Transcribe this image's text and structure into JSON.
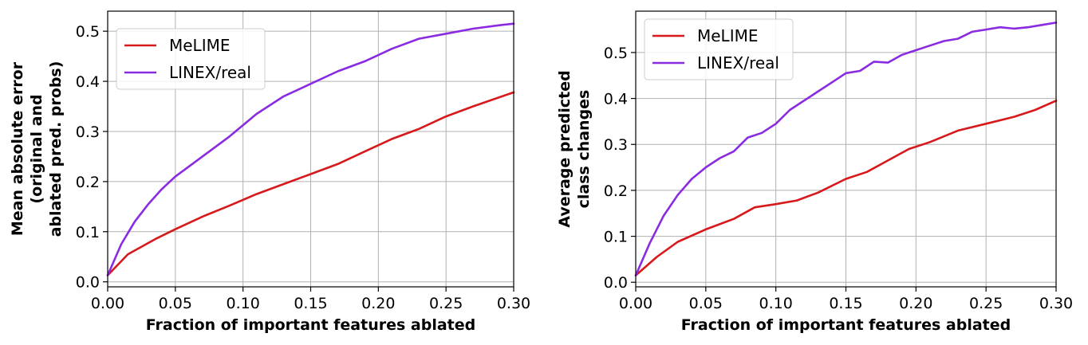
{
  "colors": {
    "melime": "#d7191c",
    "linex": "#8a2be2"
  },
  "chart_data": [
    {
      "type": "line",
      "xlabel": "Fraction of important features ablated",
      "ylabel": [
        "Mean absolute error",
        "(original and",
        "ablated pred. probs)"
      ],
      "xlim": [
        0,
        0.3
      ],
      "ylim": [
        -0.01,
        0.54
      ],
      "xticks": [
        0,
        0.05,
        0.1,
        0.15,
        0.2,
        0.25,
        0.3
      ],
      "xtick_labels": [
        "0.00",
        "0.05",
        "0.10",
        "0.15",
        "0.20",
        "0.25",
        "0.30"
      ],
      "yticks": [
        0,
        0.1,
        0.2,
        0.3,
        0.4,
        0.5
      ],
      "ytick_labels": [
        "0.0",
        "0.1",
        "0.2",
        "0.3",
        "0.4",
        "0.5"
      ],
      "grid": true,
      "legend_position": "top-left",
      "series": [
        {
          "name": "MeLIME",
          "color_key": "melime",
          "x": [
            0,
            0.015,
            0.035,
            0.05,
            0.07,
            0.09,
            0.11,
            0.13,
            0.15,
            0.17,
            0.19,
            0.21,
            0.23,
            0.25,
            0.27,
            0.3
          ],
          "y": [
            0.013,
            0.055,
            0.085,
            0.105,
            0.13,
            0.152,
            0.175,
            0.195,
            0.215,
            0.235,
            0.26,
            0.285,
            0.305,
            0.33,
            0.35,
            0.378
          ]
        },
        {
          "name": "LINEX/real",
          "color_key": "linex",
          "x": [
            0,
            0.01,
            0.02,
            0.03,
            0.04,
            0.05,
            0.07,
            0.09,
            0.11,
            0.13,
            0.15,
            0.17,
            0.19,
            0.21,
            0.23,
            0.25,
            0.27,
            0.29,
            0.3
          ],
          "y": [
            0.013,
            0.075,
            0.12,
            0.155,
            0.185,
            0.21,
            0.25,
            0.29,
            0.335,
            0.37,
            0.395,
            0.42,
            0.44,
            0.465,
            0.485,
            0.495,
            0.505,
            0.512,
            0.515
          ]
        }
      ]
    },
    {
      "type": "line",
      "xlabel": "Fraction of important features ablated",
      "ylabel": [
        "Average predicted",
        "class changes"
      ],
      "xlim": [
        0,
        0.3
      ],
      "ylim": [
        -0.01,
        0.59
      ],
      "xticks": [
        0,
        0.05,
        0.1,
        0.15,
        0.2,
        0.25,
        0.3
      ],
      "xtick_labels": [
        "0.00",
        "0.05",
        "0.10",
        "0.15",
        "0.20",
        "0.25",
        "0.30"
      ],
      "yticks": [
        0,
        0.1,
        0.2,
        0.3,
        0.4,
        0.5
      ],
      "ytick_labels": [
        "0.0",
        "0.1",
        "0.2",
        "0.3",
        "0.4",
        "0.5"
      ],
      "grid": true,
      "legend_position": "top-left",
      "series": [
        {
          "name": "MeLIME",
          "color_key": "melime",
          "x": [
            0,
            0.015,
            0.03,
            0.05,
            0.07,
            0.085,
            0.1,
            0.115,
            0.13,
            0.15,
            0.165,
            0.18,
            0.195,
            0.21,
            0.23,
            0.25,
            0.27,
            0.285,
            0.3
          ],
          "y": [
            0.015,
            0.055,
            0.088,
            0.115,
            0.138,
            0.163,
            0.17,
            0.178,
            0.195,
            0.225,
            0.24,
            0.265,
            0.29,
            0.305,
            0.33,
            0.345,
            0.36,
            0.375,
            0.395
          ]
        },
        {
          "name": "LINEX/real",
          "color_key": "linex",
          "x": [
            0,
            0.01,
            0.02,
            0.03,
            0.04,
            0.05,
            0.06,
            0.07,
            0.08,
            0.09,
            0.1,
            0.11,
            0.12,
            0.13,
            0.14,
            0.15,
            0.16,
            0.17,
            0.18,
            0.19,
            0.2,
            0.21,
            0.22,
            0.23,
            0.24,
            0.25,
            0.26,
            0.27,
            0.28,
            0.29,
            0.3
          ],
          "y": [
            0.015,
            0.085,
            0.145,
            0.19,
            0.225,
            0.25,
            0.27,
            0.285,
            0.315,
            0.325,
            0.345,
            0.375,
            0.395,
            0.415,
            0.435,
            0.455,
            0.46,
            0.48,
            0.478,
            0.495,
            0.505,
            0.515,
            0.525,
            0.53,
            0.545,
            0.55,
            0.555,
            0.552,
            0.555,
            0.56,
            0.565
          ]
        }
      ]
    }
  ]
}
